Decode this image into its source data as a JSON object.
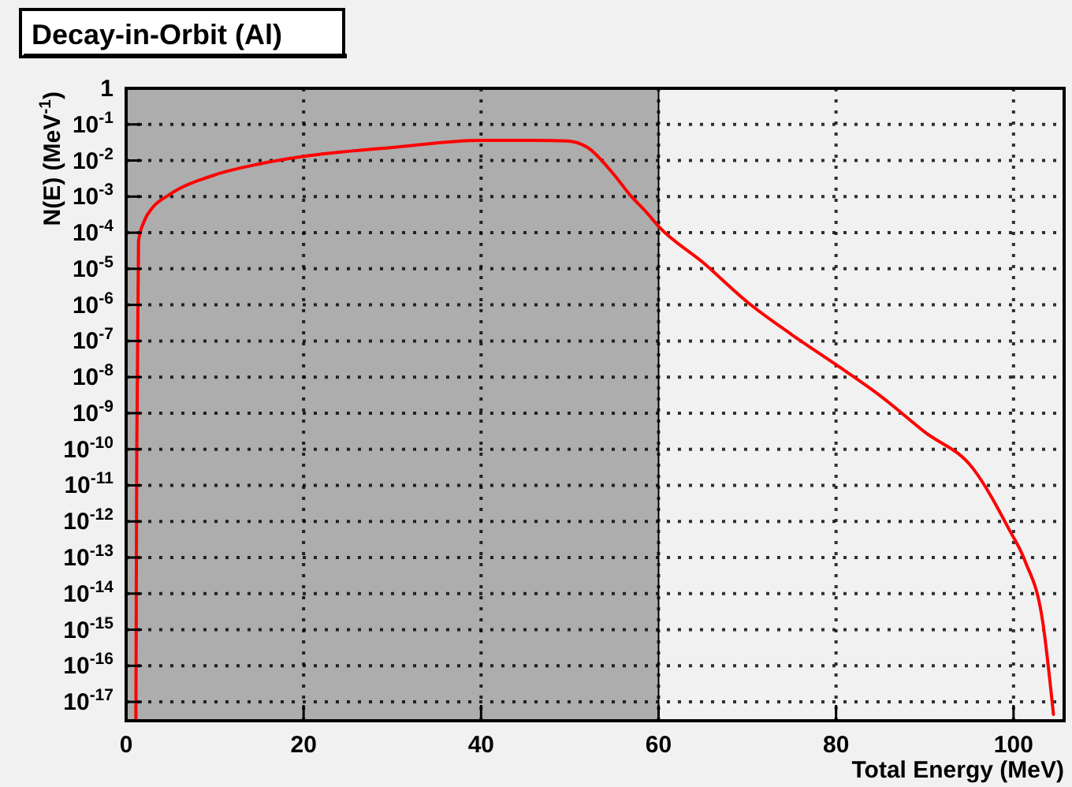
{
  "chart_data": {
    "type": "line",
    "title": "Decay-in-Orbit (Al)",
    "xlabel": "Total Energy (MeV)",
    "ylabel": "N(E) (MeV$^{-1}$)",
    "log": "y",
    "grid": true,
    "line_style": "solid",
    "xlim": [
      0,
      105.7
    ],
    "xticks": [
      0,
      20,
      40,
      60,
      80,
      100
    ],
    "ylim": [
      3e-18,
      1
    ],
    "yticks": [
      {
        "value": 1,
        "label": "1"
      },
      {
        "value": 0.1,
        "label": "10$^{-1}$"
      },
      {
        "value": 0.01,
        "label": "10$^{-2}$"
      },
      {
        "value": 0.001,
        "label": "10$^{-3}$"
      },
      {
        "value": 0.0001,
        "label": "10$^{-4}$"
      },
      {
        "value": 1e-05,
        "label": "10$^{-5}$"
      },
      {
        "value": 1e-06,
        "label": "10$^{-6}$"
      },
      {
        "value": 1e-07,
        "label": "10$^{-7}$"
      },
      {
        "value": 1e-08,
        "label": "10$^{-8}$"
      },
      {
        "value": 1e-09,
        "label": "10$^{-9}$"
      },
      {
        "value": 1e-10,
        "label": "10$^{-10}$"
      },
      {
        "value": 1e-11,
        "label": "10$^{-11}$"
      },
      {
        "value": 1e-12,
        "label": "10$^{-12}$"
      },
      {
        "value": 1e-13,
        "label": "10$^{-13}$"
      },
      {
        "value": 1e-14,
        "label": "10$^{-14}$"
      },
      {
        "value": 1e-15,
        "label": "10$^{-15}$"
      },
      {
        "value": 1e-16,
        "label": "10$^{-16}$"
      },
      {
        "value": 1e-17,
        "label": "10$^{-17}$"
      }
    ],
    "bands": [
      {
        "axis": "x",
        "from": 0,
        "to": 60,
        "color": "#adadad"
      }
    ],
    "series": [
      {
        "color": "#ff0000",
        "x": [
          1.1,
          1.2,
          1.4,
          2,
          3,
          4.8,
          10,
          15,
          20,
          30,
          40,
          46,
          49.7,
          52,
          55,
          56.8,
          58.5,
          60,
          65,
          70,
          75,
          80,
          85,
          90,
          95.4,
          99.5,
          101.3,
          103.3,
          104.5
        ],
        "values": [
          3e-18,
          1e-10,
          6e-05,
          0.0002,
          0.0005,
          0.0011,
          0.004,
          0.008,
          0.013,
          0.023,
          0.036,
          0.036,
          0.035,
          0.023,
          0.004,
          0.0011,
          0.0004,
          0.00015,
          1.5e-05,
          1.2e-06,
          1.5e-07,
          2.2e-08,
          3e-09,
          3e-10,
          3e-11,
          6e-13,
          8e-14,
          1.6e-15,
          4.5e-18
        ]
      }
    ]
  }
}
